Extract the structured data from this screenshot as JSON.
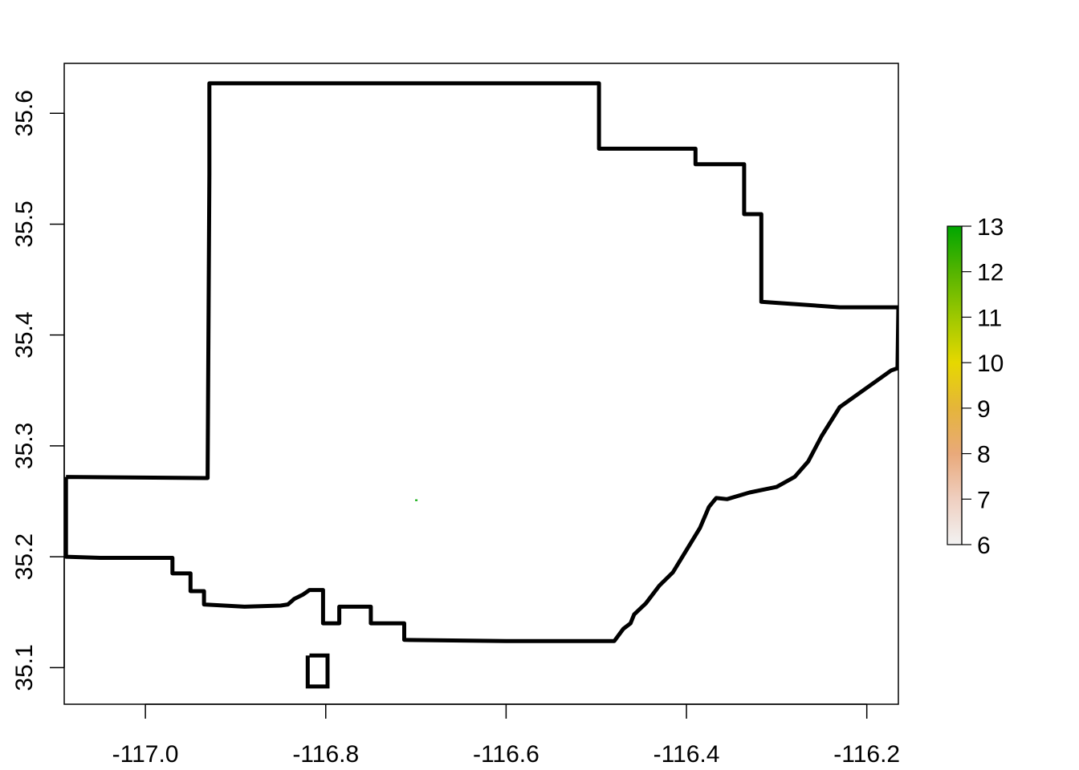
{
  "chart_data": {
    "type": "map",
    "title": "",
    "xlabel": "",
    "ylabel": "",
    "xlim": [
      -117.09,
      -116.165
    ],
    "ylim": [
      35.067,
      35.645
    ],
    "x_ticks": [
      "-117.0",
      "-116.8",
      "-116.6",
      "-116.4",
      "-116.2"
    ],
    "x_tick_values": [
      -117.0,
      -116.8,
      -116.6,
      -116.4,
      -116.2
    ],
    "y_ticks": [
      "35.1",
      "35.2",
      "35.3",
      "35.4",
      "35.5",
      "35.6"
    ],
    "y_tick_values": [
      35.1,
      35.2,
      35.3,
      35.4,
      35.5,
      35.6
    ],
    "grid": false,
    "boundary_color": "#000000",
    "outline": [
      [
        -117.088,
        35.272
      ],
      [
        -116.931,
        35.271
      ],
      [
        -116.929,
        35.545
      ],
      [
        -116.929,
        35.627
      ],
      [
        -116.497,
        35.627
      ],
      [
        -116.497,
        35.568
      ],
      [
        -116.39,
        35.568
      ],
      [
        -116.39,
        35.554
      ],
      [
        -116.336,
        35.554
      ],
      [
        -116.336,
        35.509
      ],
      [
        -116.317,
        35.509
      ],
      [
        -116.317,
        35.43
      ],
      [
        -116.23,
        35.425
      ],
      [
        -116.165,
        35.425
      ],
      [
        -116.166,
        35.37
      ],
      [
        -116.173,
        35.368
      ],
      [
        -116.23,
        35.335
      ],
      [
        -116.25,
        35.309
      ],
      [
        -116.265,
        35.286
      ],
      [
        -116.28,
        35.272
      ],
      [
        -116.3,
        35.263
      ],
      [
        -116.33,
        35.258
      ],
      [
        -116.355,
        35.252
      ],
      [
        -116.367,
        35.253
      ],
      [
        -116.375,
        35.245
      ],
      [
        -116.385,
        35.226
      ],
      [
        -116.4,
        35.206
      ],
      [
        -116.415,
        35.186
      ],
      [
        -116.43,
        35.174
      ],
      [
        -116.445,
        35.158
      ],
      [
        -116.458,
        35.148
      ],
      [
        -116.462,
        35.14
      ],
      [
        -116.47,
        35.135
      ],
      [
        -116.48,
        35.124
      ],
      [
        -116.6,
        35.124
      ],
      [
        -116.713,
        35.125
      ],
      [
        -116.713,
        35.14
      ],
      [
        -116.75,
        35.14
      ],
      [
        -116.75,
        35.155
      ],
      [
        -116.785,
        35.155
      ],
      [
        -116.785,
        35.14
      ],
      [
        -116.803,
        35.14
      ],
      [
        -116.803,
        35.17
      ],
      [
        -116.818,
        35.17
      ],
      [
        -116.825,
        35.166
      ],
      [
        -116.835,
        35.162
      ],
      [
        -116.842,
        35.157
      ],
      [
        -116.85,
        35.156
      ],
      [
        -116.89,
        35.155
      ],
      [
        -116.935,
        35.157
      ],
      [
        -116.935,
        35.169
      ],
      [
        -116.95,
        35.169
      ],
      [
        -116.95,
        35.185
      ],
      [
        -116.97,
        35.185
      ],
      [
        -116.97,
        35.199
      ],
      [
        -117.05,
        35.199
      ],
      [
        -117.088,
        35.2
      ],
      [
        -117.088,
        35.272
      ]
    ],
    "enclave": [
      [
        -116.818,
        35.111
      ],
      [
        -116.798,
        35.111
      ],
      [
        -116.798,
        35.083
      ],
      [
        -116.82,
        35.083
      ],
      [
        -116.82,
        35.111
      ]
    ],
    "raster_points": [
      {
        "x": -116.7,
        "y": 35.251,
        "value": 13
      }
    ],
    "colorbar": {
      "min": 6,
      "max": 13,
      "ticks": [
        "6",
        "7",
        "8",
        "9",
        "10",
        "11",
        "12",
        "13"
      ],
      "tick_values": [
        6,
        7,
        8,
        9,
        10,
        11,
        12,
        13
      ],
      "colors": [
        "#f2f2f2",
        "#efcfc0",
        "#e9a97a",
        "#e5b53a",
        "#e6d800",
        "#9ec800",
        "#54b400",
        "#00a600"
      ]
    }
  }
}
